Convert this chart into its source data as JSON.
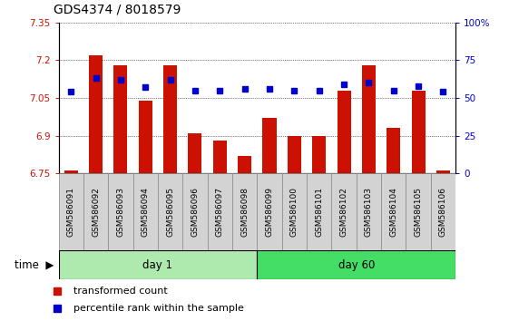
{
  "title": "GDS4374 / 8018579",
  "samples": [
    "GSM586091",
    "GSM586092",
    "GSM586093",
    "GSM586094",
    "GSM586095",
    "GSM586096",
    "GSM586097",
    "GSM586098",
    "GSM586099",
    "GSM586100",
    "GSM586101",
    "GSM586102",
    "GSM586103",
    "GSM586104",
    "GSM586105",
    "GSM586106"
  ],
  "red_values": [
    6.76,
    7.22,
    7.18,
    7.04,
    7.18,
    6.91,
    6.88,
    6.82,
    6.97,
    6.9,
    6.9,
    7.08,
    7.18,
    6.93,
    7.08,
    6.76
  ],
  "blue_values": [
    54,
    63,
    62,
    57,
    62,
    55,
    55,
    56,
    56,
    55,
    55,
    59,
    60,
    55,
    58,
    54
  ],
  "ylim_left": [
    6.75,
    7.35
  ],
  "ylim_right": [
    0,
    100
  ],
  "yticks_left": [
    6.75,
    6.9,
    7.05,
    7.2,
    7.35
  ],
  "yticks_right": [
    0,
    25,
    50,
    75,
    100
  ],
  "ytick_labels_left": [
    "6.75",
    "6.9",
    "7.05",
    "7.2",
    "7.35"
  ],
  "ytick_labels_right": [
    "0",
    "25",
    "50",
    "75",
    "100%"
  ],
  "groups": [
    {
      "label": "day 1",
      "start": 0,
      "end": 8
    },
    {
      "label": "day 60",
      "start": 8,
      "end": 16
    }
  ],
  "group_colors": [
    "#AEEAAE",
    "#44DD66"
  ],
  "bar_color": "#CC1100",
  "dot_color": "#0000CC",
  "xlabel_time": "time",
  "legend_red": "transformed count",
  "legend_blue": "percentile rank within the sample",
  "title_fontsize": 10,
  "tick_fontsize": 7.5,
  "sample_fontsize": 6.5,
  "legend_fontsize": 8
}
